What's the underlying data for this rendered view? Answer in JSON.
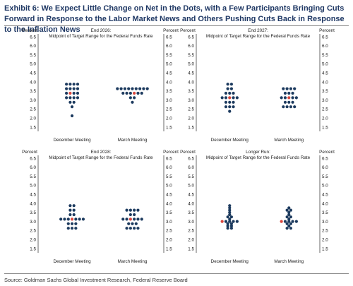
{
  "title": "Exhibit 6: We Expect Little Change on Net in the Dots, with a Few Participants Bringing Cuts Forward in Response to the Labor Market News and Others Pushing Cuts Back in Response to the Inflation News",
  "source": "Source: Goldman Sachs Global Investment Research, Federal Reserve Board",
  "colors": {
    "dot": "#1c3a5e",
    "median": "#d9463c",
    "title": "#1f3864"
  },
  "chart_data": [
    {
      "type": "scatter",
      "title": "End 2026:",
      "subtitle": "Midpoint of Target Range for the Federal Funds Rate",
      "ylabel_left": "Percent",
      "ylabel_right": "Percent",
      "ylim": [
        1.5,
        6.5
      ],
      "yticks": [
        "1.5",
        "2.0",
        "2.5",
        "3.0",
        "3.5",
        "4.0",
        "4.5",
        "5.0",
        "5.5",
        "6.0",
        "6.5"
      ],
      "categories": [
        "December Meeting",
        "March Meeting"
      ],
      "series": [
        {
          "dots": [
            {
              "y": 3.875,
              "n": 4
            },
            {
              "y": 3.625,
              "n": 4
            },
            {
              "y": 3.375,
              "n": 4,
              "median_index": 1
            },
            {
              "y": 3.125,
              "n": 4
            },
            {
              "y": 2.875,
              "n": 2
            },
            {
              "y": 2.625,
              "n": 1
            },
            {
              "y": 2.125,
              "n": 1
            }
          ]
        },
        {
          "dots": [
            {
              "y": 3.625,
              "n": 9
            },
            {
              "y": 3.375,
              "n": 6,
              "median_index": 3
            },
            {
              "y": 3.125,
              "n": 2
            },
            {
              "y": 2.875,
              "n": 1
            }
          ]
        }
      ]
    },
    {
      "type": "scatter",
      "title": "End 2027:",
      "subtitle": "Midpoint of Target Range for the Federal Funds Rate",
      "ylabel_left": "Percent",
      "ylabel_right": "Percent",
      "ylim": [
        1.5,
        6.5
      ],
      "yticks": [
        "1.5",
        "2.0",
        "2.5",
        "3.0",
        "3.5",
        "4.0",
        "4.5",
        "5.0",
        "5.5",
        "6.0",
        "6.5"
      ],
      "categories": [
        "December Meeting",
        "March Meeting"
      ],
      "series": [
        {
          "dots": [
            {
              "y": 3.875,
              "n": 2
            },
            {
              "y": 3.625,
              "n": 2
            },
            {
              "y": 3.375,
              "n": 3
            },
            {
              "y": 3.125,
              "n": 5,
              "median_index": 2
            },
            {
              "y": 2.875,
              "n": 3
            },
            {
              "y": 2.625,
              "n": 3
            },
            {
              "y": 2.375,
              "n": 1
            }
          ]
        },
        {
          "dots": [
            {
              "y": 3.625,
              "n": 4
            },
            {
              "y": 3.375,
              "n": 3
            },
            {
              "y": 3.125,
              "n": 5,
              "median_index": 2
            },
            {
              "y": 2.875,
              "n": 3
            },
            {
              "y": 2.625,
              "n": 4
            }
          ]
        }
      ]
    },
    {
      "type": "scatter",
      "title": "End 2028:",
      "subtitle": "Midpoint of Target Range for the Federal Funds Rate",
      "ylabel_left": "Percent",
      "ylabel_right": "Percent",
      "ylim": [
        1.5,
        6.5
      ],
      "yticks": [
        "1.5",
        "2.0",
        "2.5",
        "3.0",
        "3.5",
        "4.0",
        "4.5",
        "5.0",
        "5.5",
        "6.0",
        "6.5"
      ],
      "categories": [
        "December Meeting",
        "March Meeting"
      ],
      "series": [
        {
          "dots": [
            {
              "y": 3.875,
              "n": 2
            },
            {
              "y": 3.625,
              "n": 2
            },
            {
              "y": 3.375,
              "n": 2
            },
            {
              "y": 3.125,
              "n": 7,
              "median_index": 3
            },
            {
              "y": 2.875,
              "n": 3
            },
            {
              "y": 2.625,
              "n": 3
            }
          ]
        },
        {
          "dots": [
            {
              "y": 3.625,
              "n": 4
            },
            {
              "y": 3.375,
              "n": 2
            },
            {
              "y": 3.125,
              "n": 6,
              "median_index": 2
            },
            {
              "y": 2.875,
              "n": 3
            },
            {
              "y": 2.625,
              "n": 4
            }
          ]
        }
      ]
    },
    {
      "type": "scatter",
      "title": "Longer Run:",
      "subtitle": "Midpoint of Target Range for the Federal Funds Rate",
      "ylabel_left": "Percent",
      "ylabel_right": "Percent",
      "ylim": [
        1.5,
        6.5
      ],
      "yticks": [
        "1.5",
        "2.0",
        "2.5",
        "3.0",
        "3.5",
        "4.0",
        "4.5",
        "5.0",
        "5.5",
        "6.0",
        "6.5"
      ],
      "categories": [
        "December Meeting",
        "March Meeting"
      ],
      "series": [
        {
          "dots": [
            {
              "y": 3.875,
              "n": 1
            },
            {
              "y": 3.75,
              "n": 1
            },
            {
              "y": 3.625,
              "n": 1
            },
            {
              "y": 3.5,
              "n": 1
            },
            {
              "y": 3.375,
              "n": 1
            },
            {
              "y": 3.25,
              "n": 2
            },
            {
              "y": 3.125,
              "n": 1
            },
            {
              "y": 3.0,
              "n": 5,
              "median_index": 0
            },
            {
              "y": 2.875,
              "n": 2
            },
            {
              "y": 2.75,
              "n": 2
            },
            {
              "y": 2.625,
              "n": 2
            }
          ]
        },
        {
          "dots": [
            {
              "y": 3.75,
              "n": 1
            },
            {
              "y": 3.625,
              "n": 2
            },
            {
              "y": 3.5,
              "n": 1
            },
            {
              "y": 3.375,
              "n": 1
            },
            {
              "y": 3.25,
              "n": 2
            },
            {
              "y": 3.125,
              "n": 1
            },
            {
              "y": 3.0,
              "n": 5,
              "median_index": 0
            },
            {
              "y": 2.875,
              "n": 2
            },
            {
              "y": 2.75,
              "n": 1
            },
            {
              "y": 2.625,
              "n": 2
            }
          ]
        }
      ]
    }
  ]
}
